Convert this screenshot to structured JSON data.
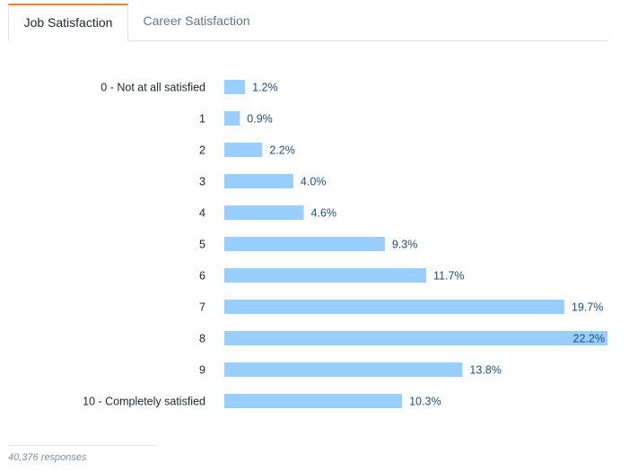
{
  "tabs": [
    {
      "label": "Job Satisfaction",
      "active": true
    },
    {
      "label": "Career Satisfaction",
      "active": false
    }
  ],
  "chart_data": {
    "type": "bar",
    "orientation": "horizontal",
    "categories": [
      "0 - Not at all satisfied",
      "1",
      "2",
      "3",
      "4",
      "5",
      "6",
      "7",
      "8",
      "9",
      "10 - Completely satisfied"
    ],
    "values": [
      1.2,
      0.9,
      2.2,
      4.0,
      4.6,
      9.3,
      11.7,
      19.7,
      22.2,
      13.8,
      10.3
    ],
    "labels": [
      "1.2%",
      "0.9%",
      "2.2%",
      "4.0%",
      "4.6%",
      "9.3%",
      "11.7%",
      "19.7%",
      "22.2%",
      "13.8%",
      "10.3%"
    ],
    "title": "",
    "xlabel": "",
    "ylabel": "",
    "xlim": [
      0,
      22.2
    ],
    "grid": false,
    "bar_color": "#99cfff",
    "label_color": "#1f4e79"
  },
  "footer": {
    "responses": "40,376 responses"
  }
}
